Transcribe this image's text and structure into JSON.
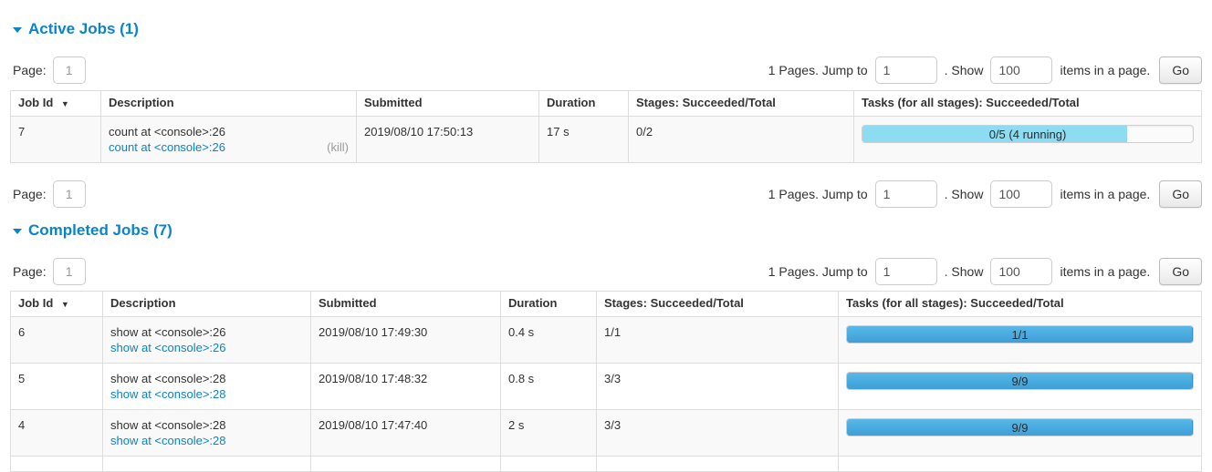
{
  "colors": {
    "accent_blue": "#0a84c8",
    "bar_running": "#8edcf2",
    "bar_succeeded_top": "#58b8e7",
    "bar_succeeded_bottom": "#3e9fd8",
    "striped_row": "#f9f9f9",
    "table_border": "#dddddd"
  },
  "sort_indicator": "▼",
  "pagination": {
    "page_label": "Page:",
    "page_value": "1",
    "pages_jump_text": "1 Pages. Jump to",
    "jump_value": "1",
    "show_text": ". Show",
    "show_value": "100",
    "items_text": "items in a page.",
    "go_label": "Go"
  },
  "active": {
    "title": "Active Jobs (1)",
    "columns": [
      "Job Id",
      "Description",
      "Submitted",
      "Duration",
      "Stages: Succeeded/Total",
      "Tasks (for all stages): Succeeded/Total"
    ],
    "rows": [
      {
        "job_id": "7",
        "description": "count at <console>:26",
        "description_link": "count at <console>:26",
        "kill_label": "(kill)",
        "submitted": "2019/08/10 17:50:13",
        "duration": "17 s",
        "stages": "0/2",
        "tasks_label": "0/5 (4 running)",
        "tasks_pct": 80,
        "tasks_status": "running"
      }
    ]
  },
  "completed": {
    "title": "Completed Jobs (7)",
    "columns": [
      "Job Id",
      "Description",
      "Submitted",
      "Duration",
      "Stages: Succeeded/Total",
      "Tasks (for all stages): Succeeded/Total"
    ],
    "rows": [
      {
        "job_id": "6",
        "description": "show at <console>:26",
        "description_link": "show at <console>:26",
        "submitted": "2019/08/10 17:49:30",
        "duration": "0.4 s",
        "stages": "1/1",
        "tasks_label": "1/1",
        "tasks_pct": 100,
        "tasks_status": "succeeded"
      },
      {
        "job_id": "5",
        "description": "show at <console>:28",
        "description_link": "show at <console>:28",
        "submitted": "2019/08/10 17:48:32",
        "duration": "0.8 s",
        "stages": "3/3",
        "tasks_label": "9/9",
        "tasks_pct": 100,
        "tasks_status": "succeeded"
      },
      {
        "job_id": "4",
        "description": "show at <console>:28",
        "description_link": "show at <console>:28",
        "submitted": "2019/08/10 17:47:40",
        "duration": "2 s",
        "stages": "3/3",
        "tasks_label": "9/9",
        "tasks_pct": 100,
        "tasks_status": "succeeded"
      }
    ]
  }
}
